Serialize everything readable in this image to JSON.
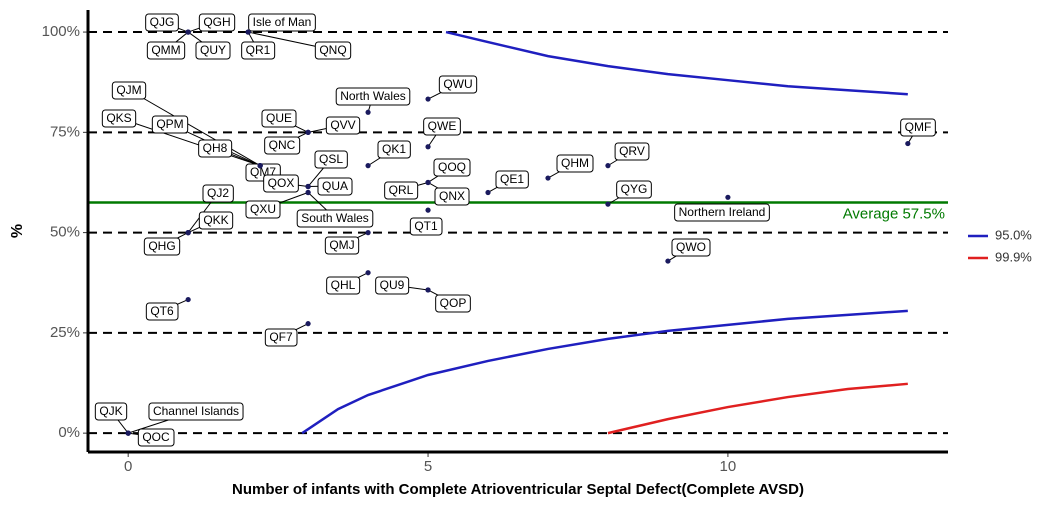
{
  "chart_data": {
    "type": "scatter",
    "xlabel": "Number of infants with Complete Atrioventricular Septal Defect(Complete AVSD)",
    "ylabel": "%",
    "xlim": [
      -0.67,
      13.67
    ],
    "ylim": [
      -4.7,
      105.5
    ],
    "xticks": [
      0,
      5,
      10
    ],
    "yticks": [
      {
        "value": 0,
        "label": "0%"
      },
      {
        "value": 25,
        "label": "25%"
      },
      {
        "value": 50,
        "label": "50%"
      },
      {
        "value": 75,
        "label": "75%"
      },
      {
        "value": 100,
        "label": "100%"
      }
    ],
    "grid": true,
    "point_color": "#1a1a5e",
    "points": [
      {
        "label": "QJG",
        "x": 1,
        "y": 100
      },
      {
        "label": "QMM",
        "x": 1,
        "y": 100
      },
      {
        "label": "QGH",
        "x": 1,
        "y": 100
      },
      {
        "label": "QUY",
        "x": 1,
        "y": 100
      },
      {
        "label": "Isle of Man",
        "x": 2,
        "y": 100
      },
      {
        "label": "QR1",
        "x": 2,
        "y": 100
      },
      {
        "label": "QNQ",
        "x": 2,
        "y": 100
      },
      {
        "label": "QJM",
        "x": 2.2,
        "y": 66.7
      },
      {
        "label": "QKS",
        "x": 2.2,
        "y": 66.7
      },
      {
        "label": "QPM",
        "x": 2.2,
        "y": 66.7
      },
      {
        "label": "QH8",
        "x": 2.2,
        "y": 66.7
      },
      {
        "label": "QM7",
        "x": 2.2,
        "y": 66.7
      },
      {
        "label": "QUE",
        "x": 3,
        "y": 75
      },
      {
        "label": "QVV",
        "x": 3,
        "y": 75
      },
      {
        "label": "QNC",
        "x": 3,
        "y": 75
      },
      {
        "label": "QOX",
        "x": 3,
        "y": 61.5
      },
      {
        "label": "QSL",
        "x": 3,
        "y": 61.5
      },
      {
        "label": "QUA",
        "x": 3,
        "y": 61.5
      },
      {
        "label": "QXU",
        "x": 3,
        "y": 60
      },
      {
        "label": "South Wales",
        "x": 3,
        "y": 60
      },
      {
        "label": "QK1",
        "x": 4,
        "y": 66.7
      },
      {
        "label": "North Wales",
        "x": 4,
        "y": 80
      },
      {
        "label": "QWU",
        "x": 5,
        "y": 83.3
      },
      {
        "label": "QWE",
        "x": 5,
        "y": 71.4
      },
      {
        "label": "QOQ",
        "x": 5,
        "y": 62.5
      },
      {
        "label": "QRL",
        "x": 5,
        "y": 62.5
      },
      {
        "label": "QNX",
        "x": 5,
        "y": 62.5
      },
      {
        "label": "QT1",
        "x": 5,
        "y": 55.6
      },
      {
        "label": "QE1",
        "x": 6,
        "y": 60
      },
      {
        "label": "QHM",
        "x": 7,
        "y": 63.6
      },
      {
        "label": "QRV",
        "x": 8,
        "y": 66.7
      },
      {
        "label": "QYG",
        "x": 8,
        "y": 57.1
      },
      {
        "label": "Northern Ireland",
        "x": 10,
        "y": 58.8
      },
      {
        "label": "QMF",
        "x": 13,
        "y": 72.2
      },
      {
        "label": "QJ2",
        "x": 1,
        "y": 50
      },
      {
        "label": "QKK",
        "x": 1,
        "y": 50
      },
      {
        "label": "QHG",
        "x": 1,
        "y": 50
      },
      {
        "label": "QMJ",
        "x": 4,
        "y": 50
      },
      {
        "label": "QHL",
        "x": 4,
        "y": 40
      },
      {
        "label": "QU9",
        "x": 5,
        "y": 35.7
      },
      {
        "label": "QOP",
        "x": 5,
        "y": 35.7
      },
      {
        "label": "QWO",
        "x": 9,
        "y": 42.9
      },
      {
        "label": "QT6",
        "x": 1,
        "y": 33.3
      },
      {
        "label": "QF7",
        "x": 3,
        "y": 27.3
      },
      {
        "label": "QJK",
        "x": 0,
        "y": 0
      },
      {
        "label": "Channel Islands",
        "x": 0,
        "y": 0
      },
      {
        "label": "QOC",
        "x": 0,
        "y": 0
      }
    ],
    "average": {
      "value": 57.5,
      "label": "Average 57.5%",
      "color": "#007a00"
    },
    "series": [
      {
        "name": "95.0%",
        "color": "#1f1fbf",
        "lines": [
          {
            "x": [
              5.3,
              6,
              7,
              8,
              9,
              10,
              11,
              12,
              13
            ],
            "values": [
              100,
              97.5,
              94,
              91.5,
              89.5,
              88,
              86.5,
              85.5,
              84.5
            ]
          },
          {
            "x": [
              2.9,
              3.5,
              4,
              5,
              6,
              7,
              8,
              9,
              10,
              11,
              12,
              13
            ],
            "values": [
              0,
              6,
              9.5,
              14.5,
              18,
              21,
              23.5,
              25.5,
              27,
              28.5,
              29.5,
              30.5
            ]
          }
        ]
      },
      {
        "name": "99.9%",
        "color": "#e02020",
        "lines": [
          {
            "x": [
              8,
              9,
              10,
              11,
              12,
              13
            ],
            "values": [
              0,
              3.5,
              6.5,
              9,
              11,
              12.3
            ]
          }
        ]
      }
    ]
  }
}
